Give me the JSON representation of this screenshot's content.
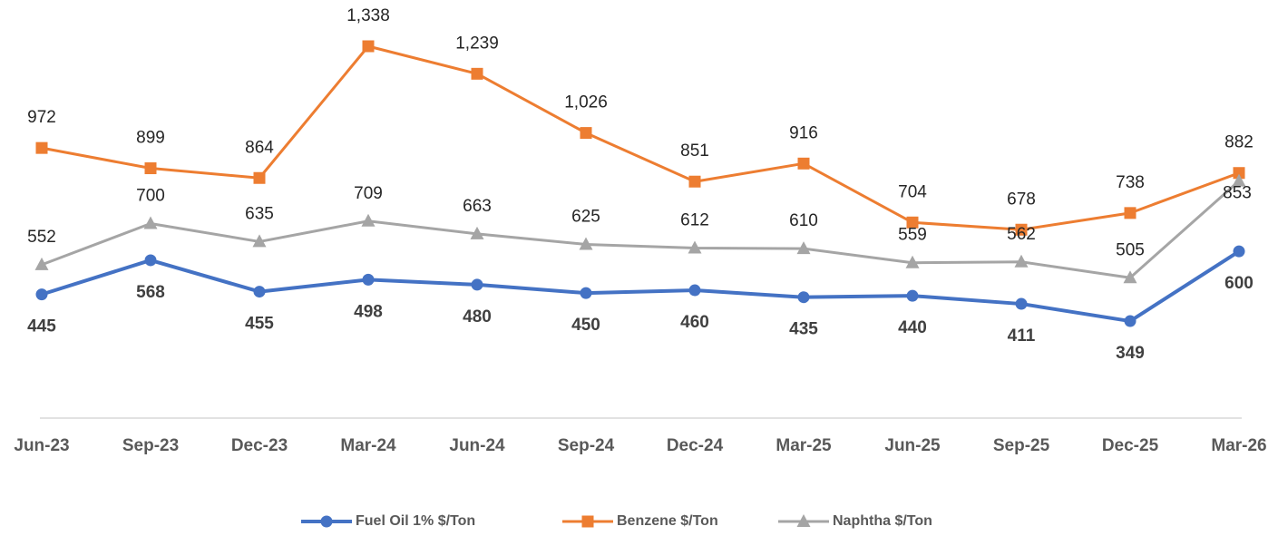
{
  "chart_data": {
    "type": "line",
    "categories": [
      "Jun-23",
      "Sep-23",
      "Dec-23",
      "Mar-24",
      "Jun-24",
      "Sep-24",
      "Dec-24",
      "Mar-25",
      "Jun-25",
      "Sep-25",
      "Dec-25",
      "Mar-26"
    ],
    "series": [
      {
        "name": "Fuel Oil 1% $/Ton",
        "color": "#4472c4",
        "marker": "circle",
        "values": [
          445,
          568,
          455,
          498,
          480,
          450,
          460,
          435,
          440,
          411,
          349,
          600
        ]
      },
      {
        "name": "Benzene $/Ton",
        "color": "#ed7d31",
        "marker": "square",
        "values": [
          972,
          899,
          864,
          1338,
          1239,
          1026,
          851,
          916,
          704,
          678,
          738,
          882
        ],
        "value_labels": [
          "972",
          "899",
          "864",
          "1,338",
          "1,239",
          "1,026",
          "851",
          "916",
          "704",
          "678",
          "738",
          "882"
        ]
      },
      {
        "name": "Naphtha $/Ton",
        "color": "#a5a5a5",
        "marker": "triangle",
        "values": [
          552,
          700,
          635,
          709,
          663,
          625,
          612,
          610,
          559,
          562,
          505,
          853
        ]
      }
    ],
    "ylim": [
      0,
      1400
    ],
    "legend": "bottom"
  }
}
